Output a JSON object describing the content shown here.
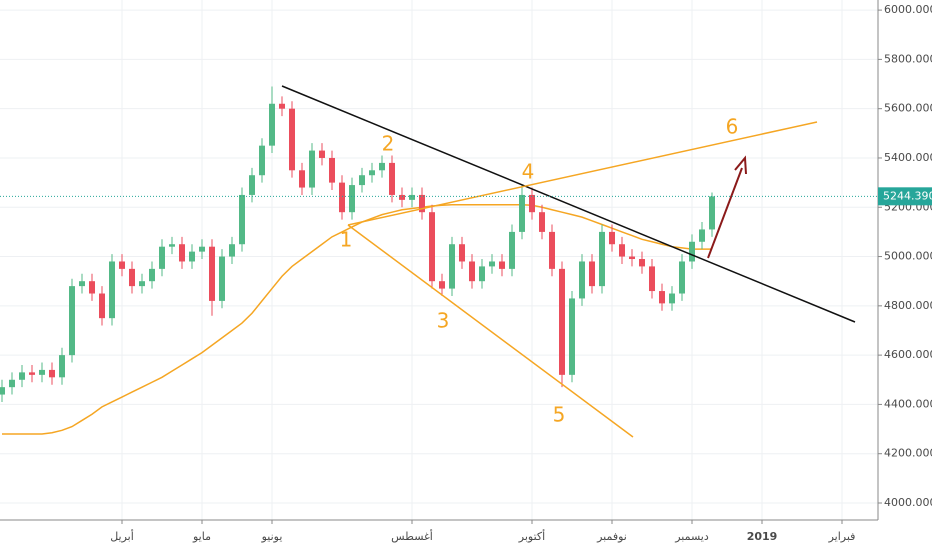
{
  "chart_data": {
    "type": "candlestick",
    "categories": [
      null,
      null,
      null,
      null,
      null,
      null,
      null,
      null,
      null,
      null,
      null,
      null,
      "أبريل",
      null,
      null,
      null,
      null,
      null,
      null,
      null,
      "مايو",
      null,
      null,
      null,
      null,
      null,
      null,
      "يونيو",
      null,
      null,
      null,
      null,
      null,
      null,
      null,
      null,
      null,
      null,
      null,
      null,
      null,
      "أغسطس",
      null,
      null,
      null,
      null,
      null,
      null,
      null,
      null,
      null,
      null,
      null,
      "أكتوبر",
      null,
      null,
      null,
      null,
      null,
      null,
      null,
      "نوفمبر",
      null,
      null,
      null,
      null,
      null,
      null,
      null,
      "ديسمبر",
      null,
      null,
      null,
      null,
      null,
      null,
      "2019",
      null,
      null,
      null,
      null,
      null,
      null,
      null,
      "فبراير",
      null
    ],
    "open": [
      4440,
      4470,
      4500,
      4530,
      4520,
      4540,
      4510,
      4600,
      4880,
      4900,
      4850,
      4750,
      4980,
      4950,
      4880,
      4900,
      4950,
      5040,
      5050,
      4980,
      5020,
      5040,
      4820,
      5000,
      5050,
      5250,
      5330,
      5450,
      5620,
      5600,
      5350,
      5280,
      5430,
      5400,
      5300,
      5180,
      5290,
      5330,
      5350,
      5380,
      5250,
      5230,
      5250,
      5180,
      4900,
      4870,
      5050,
      4980,
      4900,
      4960,
      4980,
      4950,
      5100,
      5250,
      5180,
      5100,
      4950,
      4520,
      4830,
      4980,
      4880,
      5100,
      5050,
      5000,
      4990,
      4960,
      4860,
      4810,
      4850,
      4980,
      5060,
      5110,
      null,
      null,
      null,
      null,
      null,
      null,
      null,
      null,
      null,
      null,
      null,
      null,
      null,
      null
    ],
    "high": [
      4500,
      4530,
      4560,
      4560,
      4570,
      4570,
      4630,
      4910,
      4930,
      4930,
      4880,
      5010,
      5010,
      4980,
      4930,
      4980,
      5070,
      5080,
      5080,
      5050,
      5070,
      5070,
      5030,
      5080,
      5280,
      5360,
      5480,
      5690,
      5650,
      5630,
      5380,
      5460,
      5460,
      5430,
      5330,
      5320,
      5360,
      5380,
      5410,
      5410,
      5280,
      5280,
      5280,
      5210,
      4930,
      5080,
      5080,
      5010,
      4990,
      5010,
      5010,
      5130,
      5290,
      5280,
      5210,
      5130,
      4980,
      4860,
      5010,
      5010,
      5130,
      5130,
      5080,
      5030,
      5020,
      4990,
      4890,
      4880,
      5010,
      5090,
      5140,
      5260,
      null,
      null,
      null,
      null,
      null,
      null,
      null,
      null,
      null,
      null,
      null,
      null,
      null,
      null
    ],
    "low": [
      4410,
      4440,
      4470,
      4490,
      4490,
      4480,
      4480,
      4570,
      4850,
      4820,
      4720,
      4720,
      4920,
      4850,
      4850,
      4870,
      4920,
      5010,
      4950,
      4950,
      4990,
      4760,
      4790,
      4970,
      5020,
      5220,
      5300,
      5420,
      5570,
      5320,
      5250,
      5250,
      5370,
      5270,
      5150,
      5150,
      5260,
      5300,
      5320,
      5220,
      5200,
      5200,
      5150,
      4870,
      4840,
      4840,
      4950,
      4870,
      4870,
      4930,
      4920,
      4920,
      5070,
      5150,
      5070,
      4920,
      4470,
      4490,
      4800,
      4850,
      4850,
      5020,
      4970,
      4960,
      4930,
      4830,
      4780,
      4780,
      4820,
      4950,
      5030,
      5080,
      null,
      null,
      null,
      null,
      null,
      null,
      null,
      null,
      null,
      null,
      null,
      null,
      null,
      null
    ],
    "close": [
      4470,
      4500,
      4530,
      4520,
      4540,
      4510,
      4600,
      4880,
      4900,
      4850,
      4750,
      4980,
      4950,
      4880,
      4900,
      4950,
      5040,
      5050,
      4980,
      5020,
      5040,
      4820,
      5000,
      5050,
      5250,
      5330,
      5450,
      5620,
      5600,
      5350,
      5280,
      5430,
      5400,
      5300,
      5180,
      5290,
      5330,
      5350,
      5380,
      5250,
      5230,
      5250,
      5180,
      4900,
      4870,
      5050,
      4980,
      4900,
      4960,
      4980,
      4950,
      5100,
      5250,
      5180,
      5100,
      4950,
      4520,
      4830,
      4980,
      4880,
      5100,
      5050,
      5000,
      4990,
      4960,
      4860,
      4810,
      4850,
      4980,
      5060,
      5110,
      5244,
      null,
      null,
      null,
      null,
      null,
      null,
      null,
      null,
      null,
      null,
      null,
      null,
      null,
      null
    ],
    "up_color": "#53b987",
    "down_color": "#eb4d5c",
    "moving_average": {
      "color": "#f5a623",
      "values": [
        4280,
        4280,
        4280,
        4280,
        4280,
        4285,
        4295,
        4310,
        4335,
        4360,
        4390,
        4410,
        4430,
        4450,
        4470,
        4490,
        4510,
        4535,
        4560,
        4585,
        4610,
        4640,
        4670,
        4700,
        4730,
        4770,
        4820,
        4870,
        4920,
        4960,
        4990,
        5020,
        5050,
        5080,
        5100,
        5120,
        5140,
        5155,
        5170,
        5180,
        5190,
        5195,
        5200,
        5205,
        5208,
        5210,
        5210,
        5210,
        5210,
        5210,
        5210,
        5210,
        5210,
        5208,
        5200,
        5190,
        5180,
        5170,
        5160,
        5145,
        5130,
        5115,
        5100,
        5085,
        5070,
        5060,
        5050,
        5040,
        5035,
        5030,
        5030,
        5030,
        null,
        null,
        null,
        null,
        null,
        null,
        null,
        null,
        null,
        null,
        null,
        null,
        null,
        null
      ]
    },
    "last_price": {
      "value": 5244.39,
      "label": "5244.390",
      "color": "#26a69a"
    },
    "ylim": [
      3931,
      6041
    ],
    "yticks": [
      {
        "value": 4000,
        "label": "4000.000"
      },
      {
        "value": 4200,
        "label": "4200.000"
      },
      {
        "value": 4400,
        "label": "4400.000"
      },
      {
        "value": 4600,
        "label": "4600.000"
      },
      {
        "value": 4800,
        "label": "4800.000"
      },
      {
        "value": 5000,
        "label": "5000.000"
      },
      {
        "value": 5200,
        "label": "5200.000"
      },
      {
        "value": 5400,
        "label": "5400.000"
      },
      {
        "value": 5600,
        "label": "5600.000"
      },
      {
        "value": 5800,
        "label": "5800.000"
      },
      {
        "value": 6000,
        "label": "6000.000"
      }
    ],
    "grid": true,
    "annotations": [
      "1",
      "2",
      "3",
      "4",
      "5",
      "6"
    ]
  }
}
